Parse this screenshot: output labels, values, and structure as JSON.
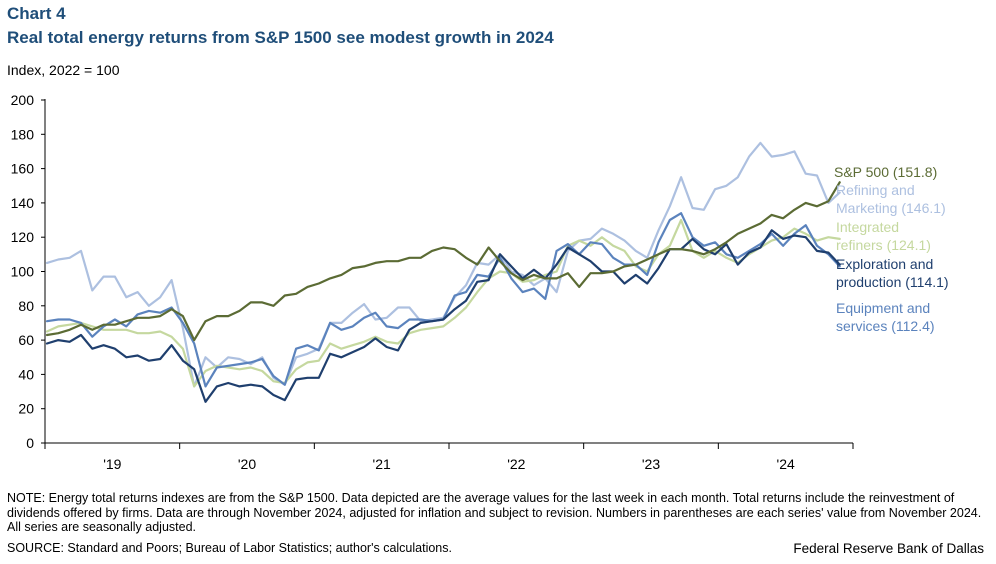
{
  "header": {
    "chart_label": "Chart 4",
    "title": "Real total energy returns from S&P 1500 see modest growth in 2024",
    "y_unit": "Index,  2022 = 100"
  },
  "footer": {
    "note": "NOTE: Energy total returns indexes are from the S&P 1500. Data depicted are the average values for the last week in each month. Total returns include the reinvestment of dividends offered by firms. Data are through November 2024, adjusted for inflation and subject to revision. Numbers in parentheses are each series' value from November 2024. All series are seasonally adjusted.",
    "source": "SOURCE: Standard and Poors; Bureau of Labor Statistics; author's calculations.",
    "credit": "Federal Reserve Bank of Dallas"
  },
  "chart_data": {
    "type": "line",
    "title": "Real total energy returns from S&P 1500 see modest growth in 2024",
    "xlabel": "",
    "ylabel": "Index, 2022 = 100",
    "ylim": [
      0,
      200
    ],
    "yticks": [
      0,
      20,
      40,
      60,
      80,
      100,
      120,
      140,
      160,
      180,
      200
    ],
    "x_start": "2019-01",
    "x_end": "2024-11",
    "x_tick_labels": [
      "'19",
      "'20",
      "'21",
      "'22",
      "'23",
      "'24"
    ],
    "series": [
      {
        "name": "S&P 500",
        "legend": [
          "S&P 500 (151.8)"
        ],
        "last_value": 151.8,
        "color": "#5b6b34",
        "values": [
          63,
          64,
          66,
          69,
          66,
          69,
          69,
          71,
          73,
          73,
          74,
          78,
          74,
          60,
          71,
          74,
          74,
          77,
          82,
          82,
          80,
          86,
          87,
          91,
          93,
          96,
          98,
          102,
          103,
          105,
          106,
          106,
          108,
          108,
          112,
          114,
          113,
          108,
          104,
          114,
          106,
          99,
          95,
          98,
          96,
          96,
          99,
          91,
          99,
          99,
          100,
          103,
          104,
          107,
          110,
          113,
          113,
          112,
          110,
          113,
          117,
          122,
          125,
          128,
          133,
          131,
          136,
          140,
          138,
          141,
          152,
          152,
          151.8
        ]
      },
      {
        "name": "Refining and Marketing",
        "legend": [
          "Refining and",
          "Marketing (146.1)"
        ],
        "last_value": 146.1,
        "color": "#adc0e0",
        "values": [
          105,
          107,
          108,
          112,
          89,
          97,
          97,
          85,
          88,
          80,
          85,
          95,
          67,
          33,
          50,
          44,
          50,
          49,
          46,
          50,
          38,
          34,
          50,
          52,
          55,
          70,
          70,
          76,
          81,
          72,
          73,
          79,
          79,
          71,
          72,
          73,
          85,
          92,
          105,
          104,
          110,
          100,
          98,
          92,
          96,
          88,
          112,
          118,
          119,
          125,
          122,
          118,
          112,
          108,
          124,
          138,
          155,
          137,
          136,
          148,
          150,
          155,
          167,
          175,
          167,
          168,
          170,
          157,
          156,
          140,
          146,
          146.1,
          146.1
        ]
      },
      {
        "name": "Integrated refiners",
        "legend": [
          "Integrated",
          "refiners (124.1)"
        ],
        "last_value": 124.1,
        "color": "#c5d89f",
        "values": [
          65,
          68,
          69,
          70,
          68,
          66,
          66,
          66,
          64,
          64,
          65,
          62,
          55,
          33,
          42,
          45,
          44,
          43,
          44,
          42,
          36,
          35,
          43,
          47,
          48,
          58,
          55,
          57,
          59,
          62,
          59,
          58,
          64,
          66,
          67,
          68,
          73,
          79,
          88,
          96,
          100,
          99,
          94,
          95,
          98,
          100,
          115,
          118,
          115,
          120,
          115,
          112,
          103,
          100,
          110,
          115,
          130,
          112,
          108,
          112,
          108,
          105,
          110,
          114,
          118,
          120,
          125,
          122,
          118,
          120,
          119,
          124.1,
          124.1
        ]
      },
      {
        "name": "Exploration and production",
        "legend": [
          "Exploration and",
          "production (114.1)"
        ],
        "last_value": 114.1,
        "color": "#1f3f6e",
        "values": [
          58,
          60,
          59,
          63,
          55,
          57,
          55,
          50,
          51,
          48,
          49,
          57,
          48,
          43,
          24,
          33,
          35,
          33,
          34,
          33,
          28,
          25,
          37,
          38,
          38,
          52,
          50,
          53,
          56,
          61,
          56,
          54,
          66,
          70,
          71,
          72,
          78,
          83,
          94,
          95,
          110,
          103,
          96,
          101,
          96,
          104,
          114,
          110,
          106,
          100,
          100,
          93,
          98,
          93,
          102,
          113,
          113,
          119,
          113,
          110,
          116,
          104,
          111,
          114,
          124,
          119,
          121,
          120,
          112,
          111,
          104,
          114.1,
          114.1
        ]
      },
      {
        "name": "Equipment and services",
        "legend": [
          "Equipment and",
          "services (112.4)"
        ],
        "last_value": 112.4,
        "color": "#5b83bd",
        "values": [
          71,
          72,
          72,
          70,
          62,
          68,
          72,
          68,
          75,
          77,
          76,
          79,
          70,
          58,
          33,
          44,
          45,
          46,
          47,
          49,
          39,
          34,
          55,
          57,
          54,
          70,
          66,
          68,
          73,
          76,
          68,
          67,
          72,
          72,
          71,
          72,
          86,
          88,
          98,
          97,
          108,
          96,
          88,
          90,
          84,
          112,
          116,
          110,
          117,
          116,
          108,
          104,
          104,
          98,
          117,
          130,
          134,
          120,
          115,
          117,
          110,
          108,
          112,
          116,
          122,
          115,
          122,
          127,
          115,
          110,
          103,
          112.4,
          112.4
        ]
      }
    ]
  }
}
